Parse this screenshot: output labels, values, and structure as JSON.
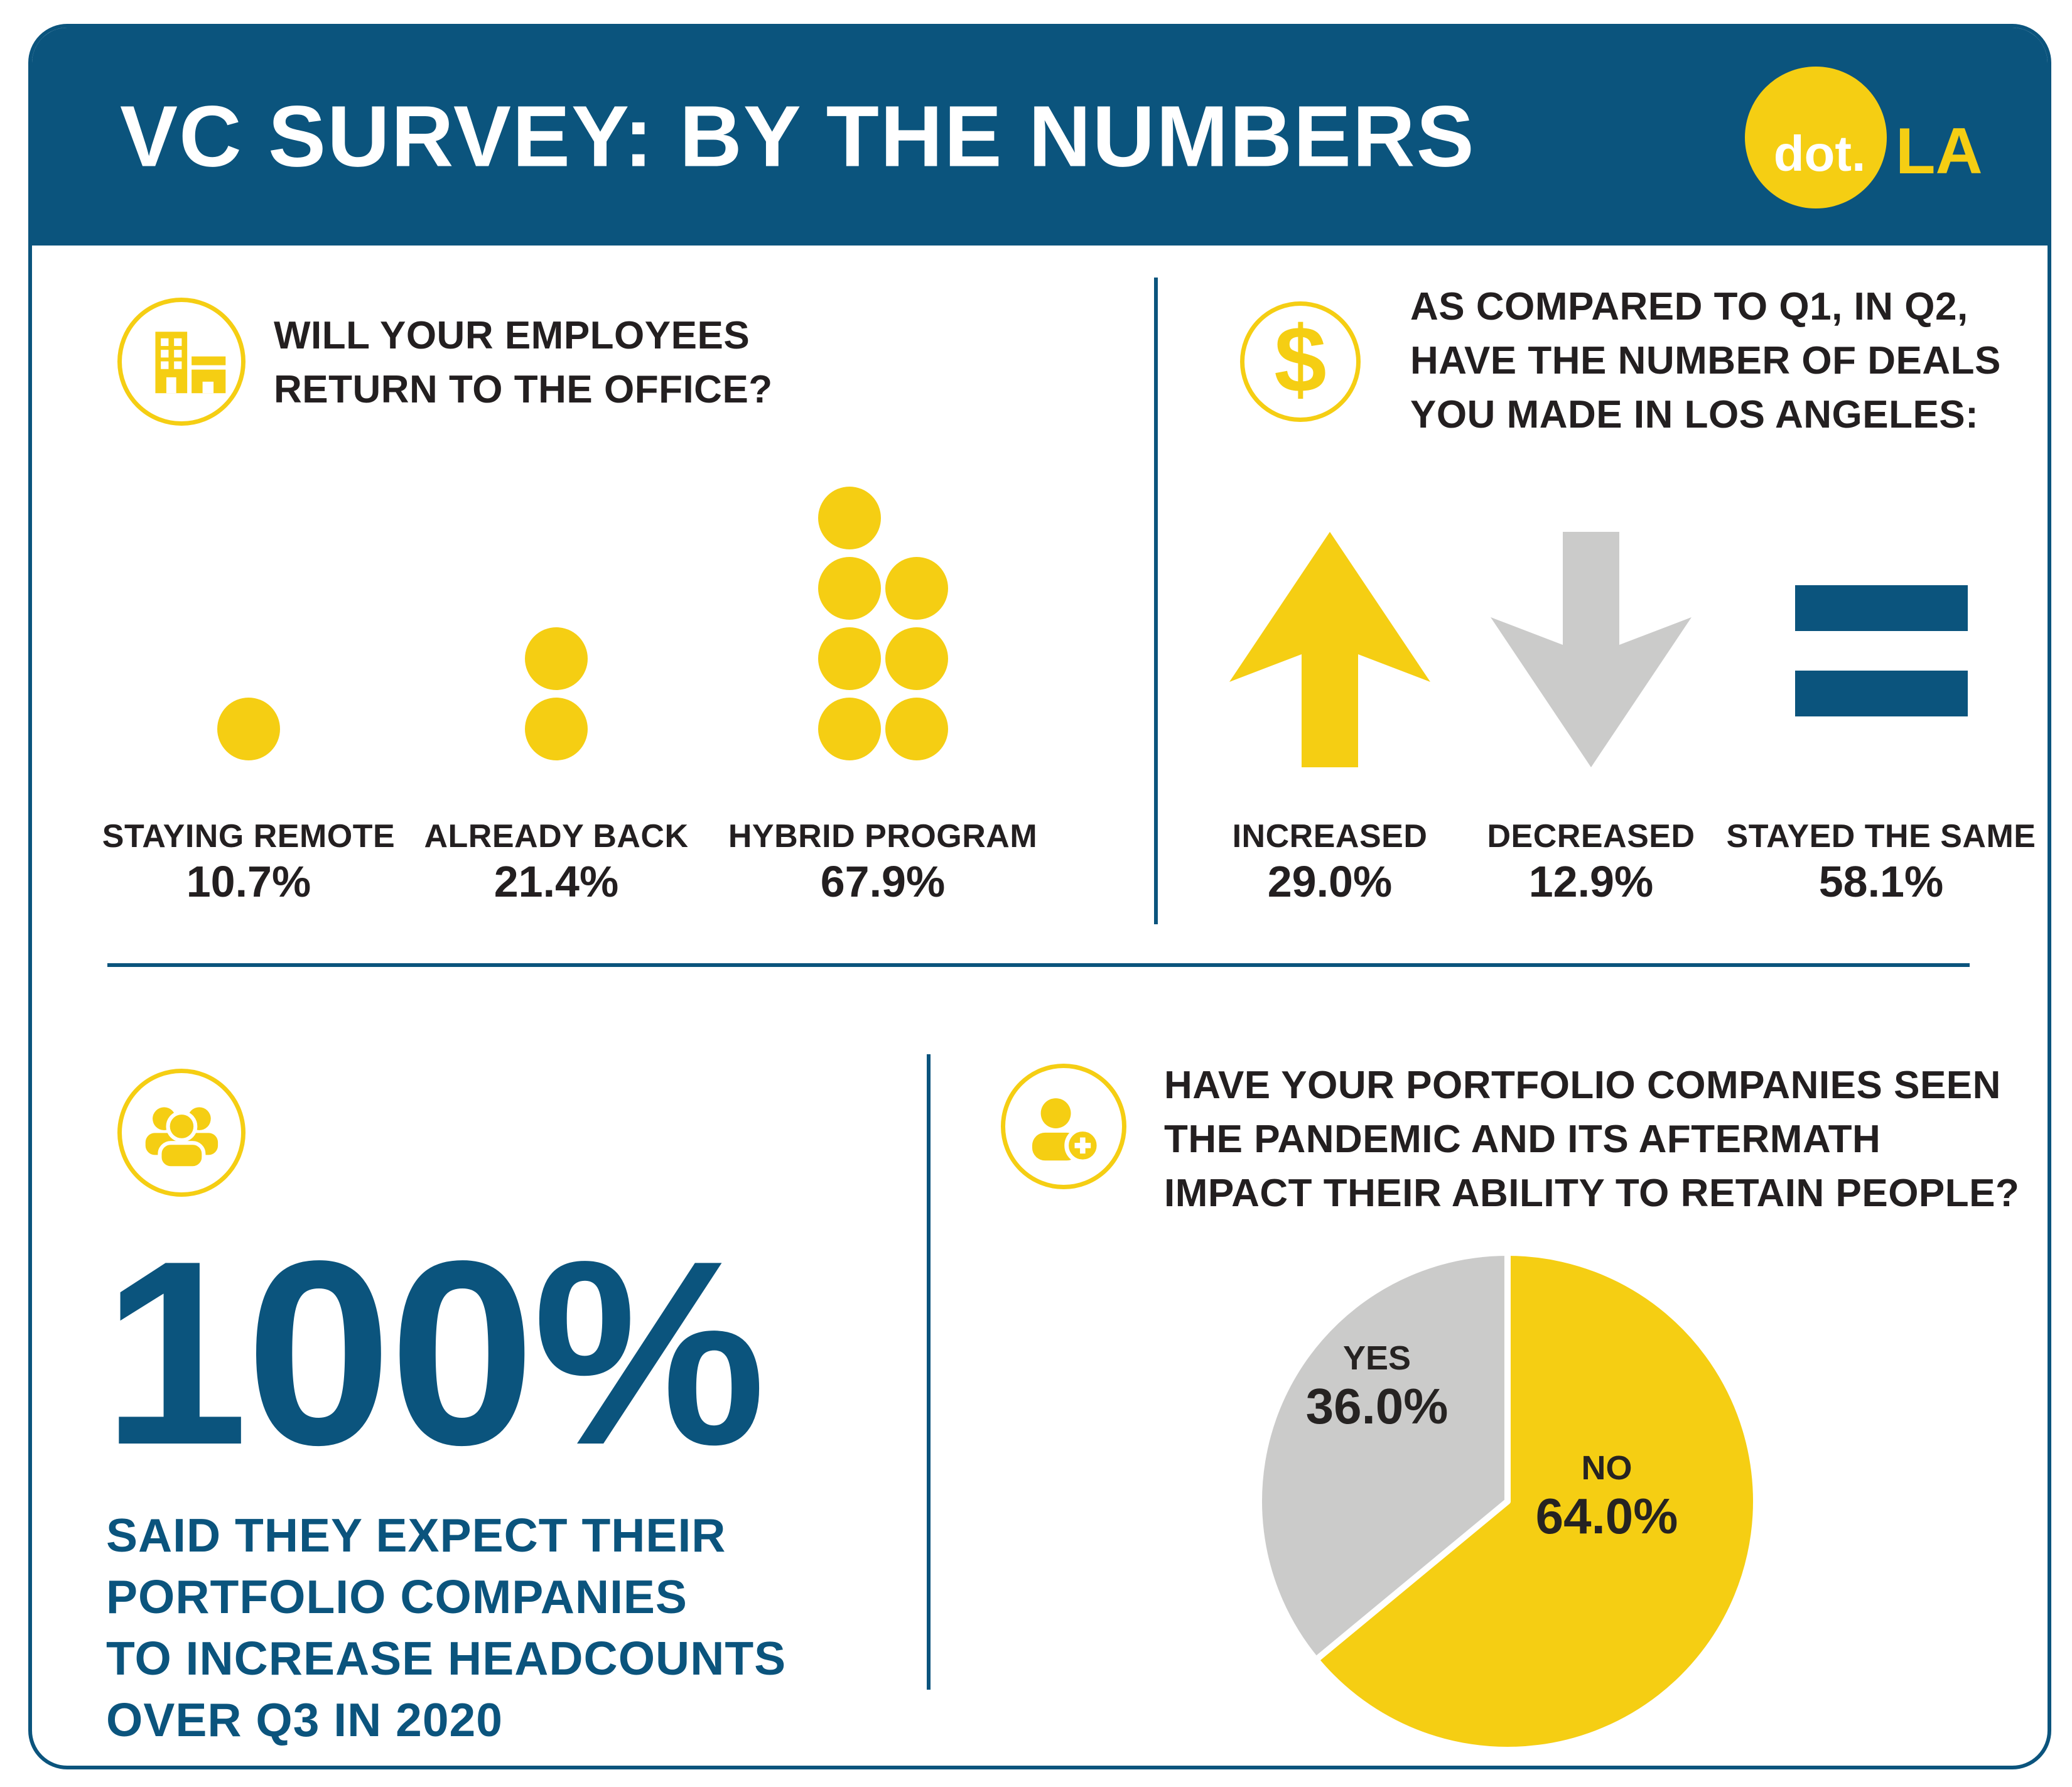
{
  "header": {
    "title": "VC SURVEY: BY THE NUMBERS",
    "logo": {
      "dot": "dot.",
      "la": "LA"
    }
  },
  "colors": {
    "blue": "#0B547D",
    "yellow": "#F5CE13",
    "gray": "#CBCBCA",
    "text_dark": "#231F20",
    "pie_label": "#262322",
    "background": "#FFFFFF"
  },
  "sections": {
    "office_return": {
      "icon": "building-icon",
      "question_lines": [
        "WILL YOUR EMPLOYEES",
        "RETURN TO THE OFFICE?"
      ]
    },
    "deals": {
      "icon": "dollar-icon",
      "icon_glyph": "$",
      "question_lines": [
        "AS COMPARED TO Q1, IN Q2,",
        "HAVE THE NUMBER OF DEALS",
        "YOU MADE IN LOS ANGELES:"
      ]
    },
    "headcount": {
      "icon": "people-icon",
      "description_lines": [
        "SAID THEY EXPECT THEIR",
        "PORTFOLIO COMPANIES",
        "TO INCREASE HEADCOUNTS",
        "OVER Q3 IN 2020"
      ]
    },
    "retention": {
      "icon": "person-plus-icon",
      "question_lines": [
        "HAVE YOUR PORTFOLIO COMPANIES SEEN",
        "THE PANDEMIC AND ITS AFTERMATH",
        "IMPACT THEIR ABILITY TO RETAIN PEOPLE?"
      ]
    }
  },
  "chart_data": [
    {
      "id": "office-return-pictogram",
      "type": "pictogram",
      "title": "WILL YOUR EMPLOYEES RETURN TO THE OFFICE?",
      "categories": [
        "STAYING REMOTE",
        "ALREADY BACK",
        "HYBRID PROGRAM"
      ],
      "values": [
        10.7,
        21.4,
        67.9
      ],
      "value_labels": [
        "10.7%",
        "21.4%",
        "67.9%"
      ],
      "unit": "%",
      "dot_counts": [
        1,
        2,
        7
      ],
      "max_dots_per_column": 4,
      "dot_color": "#F5CE13"
    },
    {
      "id": "deals-change",
      "type": "icon-stat",
      "title": "AS COMPARED TO Q1, IN Q2, HAVE THE NUMBER OF DEALS YOU MADE IN LOS ANGELES:",
      "categories": [
        "INCREASED",
        "DECREASED",
        "STAYED THE SAME"
      ],
      "values": [
        29.0,
        12.9,
        58.1
      ],
      "value_labels": [
        "29.0%",
        "12.9%",
        "58.1%"
      ],
      "unit": "%",
      "symbols": [
        "up-arrow",
        "down-arrow",
        "equals-sign"
      ],
      "symbol_colors": [
        "#F5CE13",
        "#CBCBCA",
        "#0B547D"
      ]
    },
    {
      "id": "headcount-stat",
      "type": "stat",
      "value": 100,
      "value_label": "100%",
      "description": "SAID THEY EXPECT THEIR PORTFOLIO COMPANIES TO INCREASE HEADCOUNTS OVER Q3 IN 2020"
    },
    {
      "id": "retention-pie",
      "type": "pie",
      "title": "HAVE YOUR PORTFOLIO COMPANIES SEEN THE PANDEMIC AND ITS AFTERMATH IMPACT THEIR ABILITY TO RETAIN PEOPLE?",
      "slices": [
        {
          "label": "NO",
          "value": 64.0,
          "value_label": "64.0%",
          "color": "#F5CE13"
        },
        {
          "label": "YES",
          "value": 36.0,
          "value_label": "36.0%",
          "color": "#CBCBCA"
        }
      ],
      "start_angle_deg": 0,
      "direction": "clockwise",
      "legend_position": "inside",
      "label_color": "#262322"
    }
  ]
}
